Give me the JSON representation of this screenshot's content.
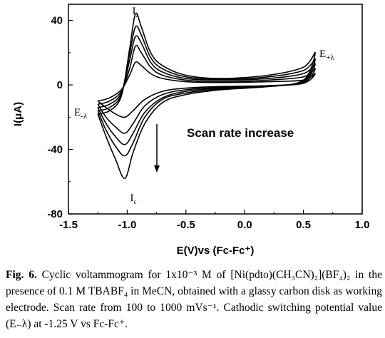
{
  "chart_data": {
    "type": "line",
    "title": "",
    "xlabel": "E(V)vs (Fc-Fc⁺)",
    "ylabel": "I(μA)",
    "xlim": [
      -1.5,
      1.0
    ],
    "ylim": [
      -80,
      50
    ],
    "x_ticks": [
      "-1.5",
      "-1.0",
      "-0.5",
      "0.0",
      "0.5",
      "1.0"
    ],
    "y_ticks": [
      "40",
      "0",
      "-40",
      "-80"
    ],
    "grid": false,
    "legend": "none",
    "color": "#000000",
    "annotations": {
      "anodic_peak": "I",
      "anodic_peak_sub": "a",
      "cathodic_peak": "I",
      "cathodic_peak_sub": "c",
      "e_plus": "E",
      "e_plus_sub": "+λ",
      "e_minus": "E",
      "e_minus_sub": "-λ",
      "scan_text": "Scan rate increase"
    },
    "series": [
      {
        "scale": 0.52,
        "x": [
          -1.25,
          -1.15,
          -1.05,
          -0.98,
          -0.93,
          -0.88,
          -0.8,
          -0.7,
          -0.5,
          -0.2,
          0.2,
          0.5,
          0.6,
          0.5,
          0.2,
          -0.2,
          -0.5,
          -0.7,
          -0.85,
          -0.95,
          -1.02,
          -1.1,
          -1.18,
          -1.25
        ],
        "y": [
          -10,
          -8,
          -3,
          6,
          14,
          12,
          7,
          4,
          2,
          1.5,
          2,
          3,
          7,
          1,
          -0.5,
          -1,
          -2,
          -4,
          -9,
          -16,
          -20,
          -18,
          -14,
          -10
        ]
      },
      {
        "scale": 0.65,
        "x": [
          -1.25,
          -1.15,
          -1.05,
          -0.98,
          -0.93,
          -0.88,
          -0.8,
          -0.7,
          -0.5,
          -0.2,
          0.2,
          0.5,
          0.6,
          0.5,
          0.2,
          -0.2,
          -0.5,
          -0.7,
          -0.85,
          -0.95,
          -1.02,
          -1.1,
          -1.18,
          -1.25
        ],
        "y": [
          -12,
          -10,
          -4,
          10,
          24,
          20,
          11,
          6,
          3,
          2,
          3,
          5,
          10,
          1.5,
          -0.5,
          -1.5,
          -3,
          -6,
          -13,
          -24,
          -30,
          -26,
          -20,
          -12
        ]
      },
      {
        "scale": 0.78,
        "x": [
          -1.25,
          -1.15,
          -1.05,
          -0.98,
          -0.93,
          -0.88,
          -0.8,
          -0.7,
          -0.5,
          -0.2,
          0.2,
          0.5,
          0.6,
          0.5,
          0.2,
          -0.2,
          -0.5,
          -0.7,
          -0.85,
          -0.95,
          -1.02,
          -1.1,
          -1.18,
          -1.25
        ],
        "y": [
          -14,
          -12,
          -5,
          15,
          30,
          26,
          14,
          8,
          4,
          3,
          4,
          7,
          13,
          2,
          -1,
          -2,
          -4,
          -8,
          -17,
          -30,
          -37,
          -32,
          -24,
          -14
        ]
      },
      {
        "scale": 0.89,
        "x": [
          -1.25,
          -1.15,
          -1.05,
          -0.98,
          -0.93,
          -0.88,
          -0.8,
          -0.7,
          -0.5,
          -0.2,
          0.2,
          0.5,
          0.6,
          0.5,
          0.2,
          -0.2,
          -0.5,
          -0.7,
          -0.85,
          -0.95,
          -1.02,
          -1.1,
          -1.18,
          -1.25
        ],
        "y": [
          -16,
          -14,
          -6,
          19,
          36,
          31,
          17,
          10,
          5,
          3.5,
          5,
          9,
          16,
          2.5,
          -1,
          -2.5,
          -5,
          -9,
          -20,
          -36,
          -44,
          -38,
          -28,
          -16
        ]
      },
      {
        "scale": 1.0,
        "x": [
          -1.25,
          -1.15,
          -1.05,
          -0.98,
          -0.93,
          -0.88,
          -0.8,
          -0.7,
          -0.5,
          -0.2,
          0.2,
          0.5,
          0.6,
          0.5,
          0.2,
          -0.2,
          -0.5,
          -0.7,
          -0.85,
          -0.95,
          -1.02,
          -1.1,
          -1.18,
          -1.25
        ],
        "y": [
          -18,
          -16,
          -7,
          22,
          44,
          36,
          20,
          12,
          6,
          4,
          6,
          11,
          20,
          3,
          -1,
          -3,
          -6,
          -11,
          -24,
          -42,
          -58,
          -46,
          -32,
          -18
        ]
      }
    ]
  },
  "caption": {
    "fig_label": "Fig. 6.",
    "text": " Cyclic voltammogram for 1x10⁻³ M of [Ni(pdto)(CH₃CN)₂](BF₄)₂ in the presence of 0.1 M TBABF₄ in MeCN, obtained with a glassy carbon disk as working electrode. Scan rate from 100 to 1000 mVs⁻¹. Cathodic switching potential value (E₋λ) at -1.25 V vs Fc-Fc⁺."
  }
}
